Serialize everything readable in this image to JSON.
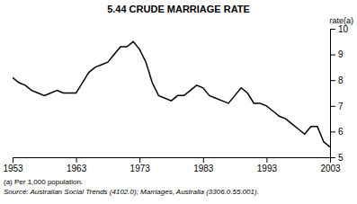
{
  "chart_data": {
    "type": "line",
    "title": "5.44   CRUDE MARRIAGE RATE",
    "y_label": "rate(a)",
    "annotations": [
      "(a) Per 1,000 population.",
      "Source: Australian Social Trends (4102.0); Marriages, Australia (3306.0.55.001)."
    ],
    "color": "#000000",
    "grid": false,
    "xlim": [
      1953,
      2003
    ],
    "xticks": [
      1953,
      1963,
      1973,
      1983,
      1993,
      2003
    ],
    "ylim": [
      5,
      10
    ],
    "yticks": [
      5,
      6,
      7,
      8,
      9,
      10
    ],
    "x": [
      1953,
      1954,
      1955,
      1956,
      1957,
      1958,
      1959,
      1960,
      1961,
      1962,
      1963,
      1964,
      1965,
      1966,
      1967,
      1968,
      1969,
      1970,
      1971,
      1972,
      1973,
      1974,
      1975,
      1976,
      1977,
      1978,
      1979,
      1980,
      1981,
      1982,
      1983,
      1984,
      1985,
      1986,
      1987,
      1988,
      1989,
      1990,
      1991,
      1992,
      1993,
      1994,
      1995,
      1996,
      1997,
      1998,
      1999,
      2000,
      2001,
      2002,
      2003
    ],
    "values": [
      8.1,
      7.9,
      7.8,
      7.6,
      7.5,
      7.4,
      7.5,
      7.6,
      7.5,
      7.5,
      7.5,
      7.9,
      8.3,
      8.5,
      8.6,
      8.7,
      9.0,
      9.3,
      9.3,
      9.5,
      9.2,
      8.7,
      7.9,
      7.4,
      7.3,
      7.2,
      7.4,
      7.4,
      7.6,
      7.8,
      7.7,
      7.4,
      7.3,
      7.2,
      7.1,
      7.4,
      7.7,
      7.5,
      7.1,
      7.1,
      7.0,
      6.8,
      6.6,
      6.5,
      6.3,
      6.1,
      5.9,
      6.2,
      6.2,
      5.6,
      5.4
    ]
  }
}
